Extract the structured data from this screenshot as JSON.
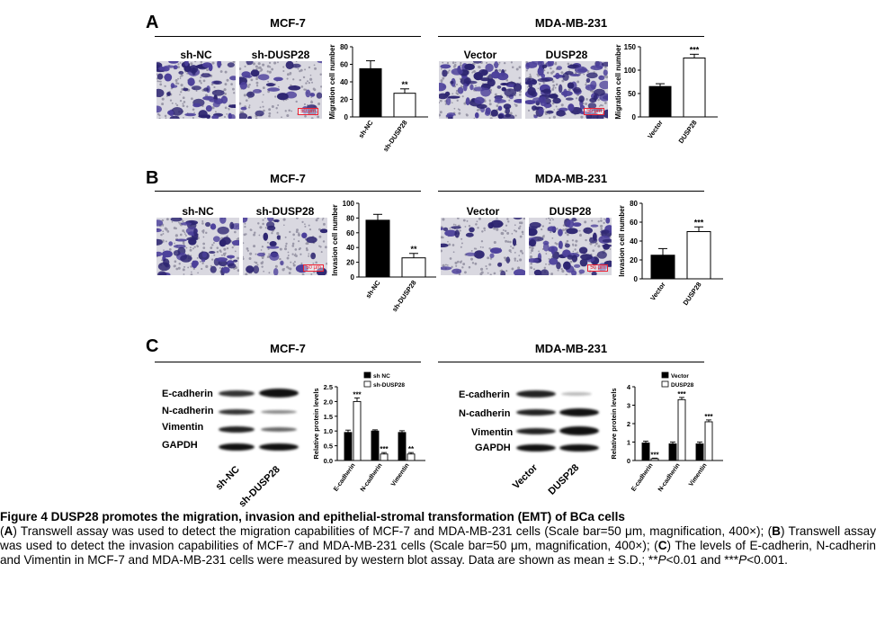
{
  "panels": {
    "A": {
      "letter": "A",
      "left": {
        "group": "MCF-7",
        "images": [
          "sh-NC",
          "sh-DUSP28"
        ],
        "scale": "50 μm",
        "chart_id": "A-left"
      },
      "right": {
        "group": "MDA-MB-231",
        "images": [
          "Vector",
          "DUSP28"
        ],
        "scale": "50 μm",
        "chart_id": "A-right"
      }
    },
    "B": {
      "letter": "B",
      "left": {
        "group": "MCF-7",
        "images": [
          "sh-NC",
          "sh-DUSP28"
        ],
        "scale": "50 μm",
        "chart_id": "B-left"
      },
      "right": {
        "group": "MDA-MB-231",
        "images": [
          "Vector",
          "DUSP28"
        ],
        "scale": "50 μm",
        "chart_id": "B-right"
      }
    },
    "C": {
      "letter": "C",
      "left": {
        "group": "MCF-7",
        "blot_labels": [
          "E-cadherin",
          "N-cadherin",
          "Vimentin",
          "GAPDH"
        ],
        "lanes": [
          "sh-NC",
          "sh-DUSP28"
        ]
      },
      "right": {
        "group": "MDA-MB-231",
        "blot_labels": [
          "E-cadherin",
          "N-cadherin",
          "Vimentin",
          "GAPDH"
        ],
        "lanes": [
          "Vector",
          "DUSP28"
        ]
      }
    }
  },
  "chart_data": [
    {
      "id": "A-left",
      "type": "bar",
      "categories": [
        "sh-NC",
        "sh-DUSP28"
      ],
      "values": [
        55,
        27
      ],
      "errors": [
        9,
        5
      ],
      "significance": [
        "",
        "**"
      ],
      "fills": [
        "#000000",
        "#ffffff"
      ],
      "ylabel": "Migration cell number",
      "ylim": [
        0,
        80
      ],
      "yticks": [
        0,
        20,
        40,
        60,
        80
      ]
    },
    {
      "id": "A-right",
      "type": "bar",
      "categories": [
        "Vector",
        "DUSP28"
      ],
      "values": [
        65,
        126
      ],
      "errors": [
        6,
        8
      ],
      "significance": [
        "",
        "***"
      ],
      "fills": [
        "#000000",
        "#ffffff"
      ],
      "ylabel": "Migration cell number",
      "ylim": [
        0,
        150
      ],
      "yticks": [
        0,
        50,
        100,
        150
      ]
    },
    {
      "id": "B-left",
      "type": "bar",
      "categories": [
        "sh-NC",
        "sh-DUSP28"
      ],
      "values": [
        77,
        26
      ],
      "errors": [
        8,
        6
      ],
      "significance": [
        "",
        "**"
      ],
      "fills": [
        "#000000",
        "#ffffff"
      ],
      "ylabel": "Invasion cell number",
      "ylim": [
        0,
        100
      ],
      "yticks": [
        0,
        20,
        40,
        60,
        80,
        100
      ]
    },
    {
      "id": "B-right",
      "type": "bar",
      "categories": [
        "Vector",
        "DUSP28"
      ],
      "values": [
        25,
        50
      ],
      "errors": [
        7,
        5
      ],
      "significance": [
        "",
        "***"
      ],
      "fills": [
        "#000000",
        "#ffffff"
      ],
      "ylabel": "Invasion cell number",
      "ylim": [
        0,
        80
      ],
      "yticks": [
        0,
        20,
        40,
        60,
        80
      ]
    },
    {
      "id": "C-left",
      "type": "bar",
      "categories": [
        "E-cadherin",
        "N-cadherin",
        "Vimentin"
      ],
      "series": [
        {
          "name": "sh NC",
          "fill": "#000000",
          "values": [
            0.95,
            1.0,
            0.95
          ],
          "errors": [
            0.08,
            0.04,
            0.06
          ]
        },
        {
          "name": "sh-DUSP28",
          "fill": "#ffffff",
          "values": [
            2.0,
            0.22,
            0.22
          ],
          "errors": [
            0.12,
            0.05,
            0.05
          ]
        }
      ],
      "significance": [
        "***",
        "***",
        "**"
      ],
      "ylabel": "Relative protein levels",
      "ylim": [
        0,
        2.5
      ],
      "yticks": [
        0.0,
        0.5,
        1.0,
        1.5,
        2.0,
        2.5
      ],
      "ytick_labels": [
        "0.0",
        "0.5",
        "1.0",
        "1.5",
        "2.0",
        "2.5"
      ],
      "legend": "top"
    },
    {
      "id": "C-right",
      "type": "bar",
      "categories": [
        "E-cadherin",
        "N-cadherin",
        "Vimentin"
      ],
      "series": [
        {
          "name": "Vector",
          "fill": "#000000",
          "values": [
            0.95,
            0.9,
            0.9
          ],
          "errors": [
            0.1,
            0.1,
            0.1
          ]
        },
        {
          "name": "DUSP28",
          "fill": "#ffffff",
          "values": [
            0.1,
            3.3,
            2.1
          ],
          "errors": [
            0.03,
            0.12,
            0.1
          ]
        }
      ],
      "significance": [
        "***",
        "***",
        "***"
      ],
      "ylabel": "Relative protein levels",
      "ylim": [
        0,
        4
      ],
      "yticks": [
        0,
        1,
        2,
        3,
        4
      ],
      "ytick_labels": [
        "0",
        "1",
        "2",
        "3",
        "4"
      ],
      "legend": "top"
    }
  ],
  "caption": {
    "title": "Figure 4 DUSP28 promotes the migration, invasion and epithelial-stromal transformation (EMT) of BCa cells",
    "a_letter": "A",
    "a_text": ") Transwell assay was used to detect the migration capabilities of MCF-7 and MDA-MB-231 cells (Scale bar=50 μm, magnification, 400×); (",
    "b_letter": "B",
    "b_text": ") Transwell assay was used to detect the invasion capabilities of MCF-7 and MDA-MB-231 cells (Scale bar=50 μm, magnification, 400×); (",
    "c_letter": "C",
    "c_text": ") The levels of E-cadherin, N-cadherin and Vimentin in MCF-7 and MDA-MB-231 cells were measured by western blot assay. Data are shown as mean ± S.D.; **",
    "p1": "P",
    "mid": "<0.01 and ***",
    "p2": "P",
    "end": "<0.001.",
    "open_paren": "("
  },
  "colors": {
    "stain": "#4b3f9a",
    "stain_dark": "#2c2470",
    "background": "#d9d8e0",
    "scalebar": "#ee2233"
  }
}
